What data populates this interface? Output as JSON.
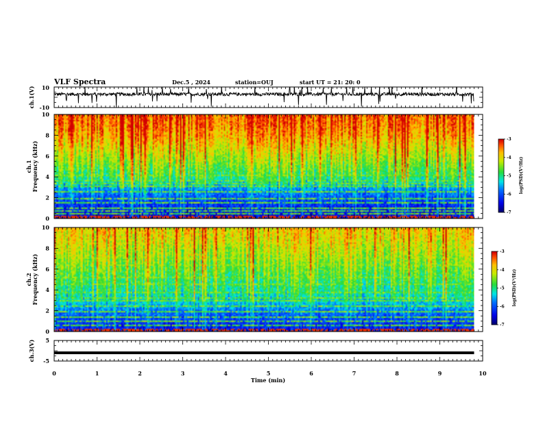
{
  "chart_data": [
    {
      "type": "line",
      "panel": "channel-1-waveform",
      "title": "VLF Spectra",
      "date": "Dec.5  , 2024",
      "station": "station=OUJ",
      "start_ut": "start  UT  =   21: 20: 0",
      "ylabel": "ch.1(V)",
      "ylim": [
        -10,
        10
      ],
      "y_ticks": [
        "10",
        "-10"
      ],
      "xlim": [
        0,
        10
      ],
      "x_end": 9.8,
      "baseline": 3,
      "trace_color": "#000000"
    },
    {
      "type": "heatmap",
      "panel": "channel-1-spectrogram",
      "ylabel": "ch.1\nFrequency  (kHz)",
      "ylim": [
        0,
        10
      ],
      "y_ticks": [
        "0",
        "2",
        "4",
        "6",
        "8",
        "10"
      ],
      "xlim": [
        0,
        10
      ],
      "x_end": 9.8,
      "colorbar": {
        "label": "log(PSD)(V²/Hz)",
        "range": [
          -7,
          -3
        ],
        "ticks": [
          "-3",
          "-4",
          "-5",
          "-6",
          "-7"
        ]
      },
      "profile": [
        [
          0,
          -6.6
        ],
        [
          1,
          -6.3
        ],
        [
          2,
          -6.0
        ],
        [
          3,
          -5.6
        ],
        [
          4,
          -4.9
        ],
        [
          5,
          -4.6
        ],
        [
          6,
          -4.3
        ],
        [
          7,
          -4.0
        ],
        [
          8,
          -3.7
        ],
        [
          9,
          -3.5
        ],
        [
          10,
          -3.4
        ]
      ],
      "lines_khz": [
        0.5,
        0.8,
        1.1,
        1.55,
        2.0,
        2.6,
        3.1,
        3.4,
        3.7,
        4.2
      ]
    },
    {
      "type": "heatmap",
      "panel": "channel-2-spectrogram",
      "ylabel": "ch.2\nFrequency  (kHz)",
      "ylim": [
        0,
        10
      ],
      "y_ticks": [
        "0",
        "2",
        "4",
        "6",
        "8",
        "10"
      ],
      "xlim": [
        0,
        10
      ],
      "x_end": 9.8,
      "colorbar": {
        "label": "log(PSD)(V²/Hz)",
        "range": [
          -7,
          -3
        ],
        "ticks": [
          "-3",
          "-4",
          "-5",
          "-6",
          "-7"
        ]
      },
      "profile": [
        [
          0,
          -6.4
        ],
        [
          1,
          -6.1
        ],
        [
          2,
          -5.8
        ],
        [
          3,
          -5.3
        ],
        [
          4,
          -5.0
        ],
        [
          5,
          -4.8
        ],
        [
          6,
          -4.6
        ],
        [
          7,
          -4.4
        ],
        [
          8,
          -4.2
        ],
        [
          9,
          -4.0
        ],
        [
          10,
          -3.9
        ]
      ],
      "lines_khz": [
        0.6,
        1.0,
        1.5,
        2.0,
        2.5,
        3.0,
        3.3,
        3.8,
        4.6,
        5.3,
        6.4,
        7.1
      ]
    },
    {
      "type": "line",
      "panel": "channel-3-waveform",
      "ylabel": "ch.3(V)",
      "ylim": [
        -5,
        5
      ],
      "y_ticks": [
        "5",
        "-5"
      ],
      "xlim": [
        0,
        10
      ],
      "x_end": 9.8,
      "baseline": -1,
      "xlabel": "Time  (min)",
      "x_ticks": [
        "0",
        "1",
        "2",
        "3",
        "4",
        "5",
        "6",
        "7",
        "8",
        "9",
        "10"
      ],
      "trace_color": "#000000"
    }
  ]
}
